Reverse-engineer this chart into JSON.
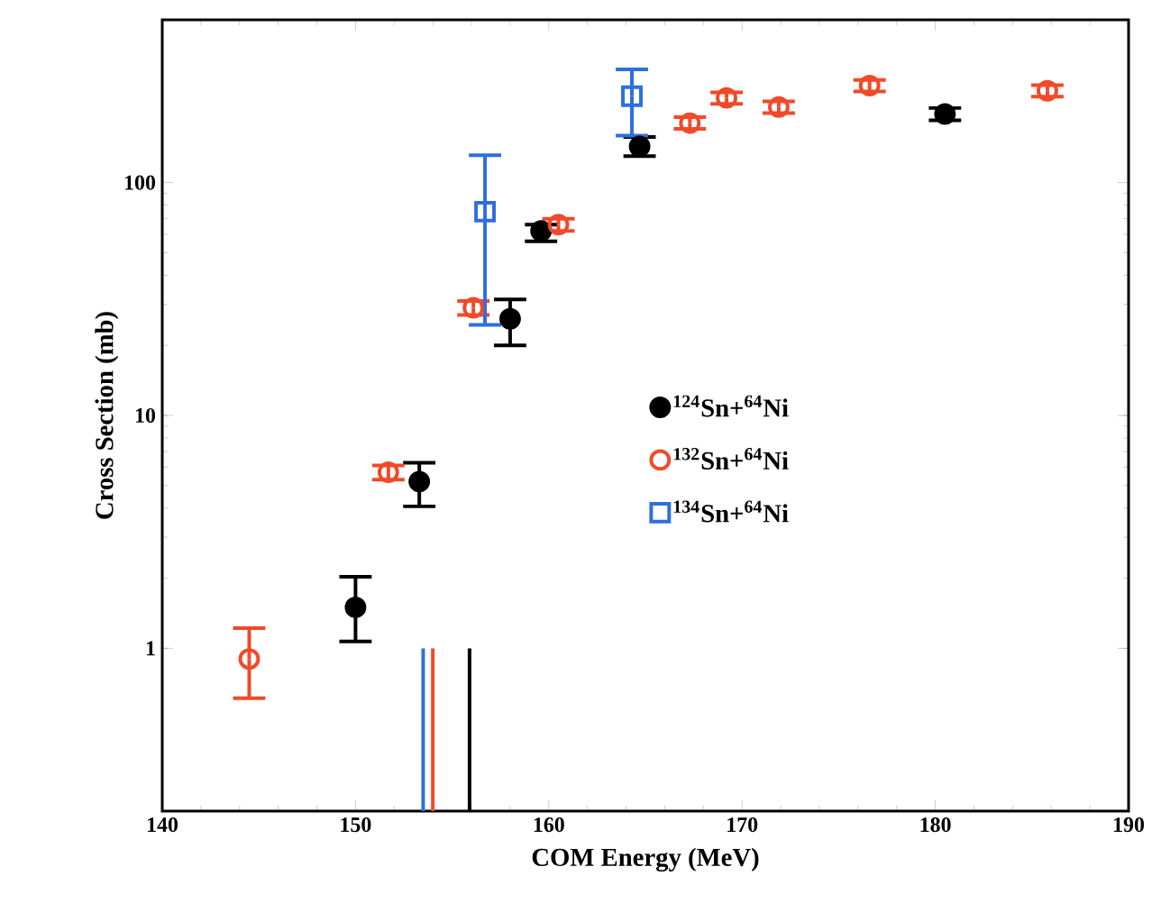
{
  "chart_data": {
    "type": "scatter",
    "xlabel": "COM Energy (MeV)",
    "ylabel": "Cross Section (mb)",
    "log": "y",
    "xlim": [
      140,
      190
    ],
    "ylim": [
      0.2,
      500
    ],
    "xticks": [
      140,
      150,
      160,
      170,
      180,
      190
    ],
    "yticks": [
      1,
      10,
      100
    ],
    "legend": "right",
    "grid": false,
    "series": [
      {
        "name": "$^{124}$Sn+$^{64}$Ni",
        "color": "#000000",
        "marker": "circle",
        "x": [
          150,
          153.3,
          158.0,
          159.6,
          164.7,
          180.5
        ],
        "values": [
          1.5,
          5.2,
          26,
          62,
          143,
          197
        ],
        "errors": [
          [
            1.07,
            2.03
          ],
          [
            4.07,
            6.26
          ],
          [
            20,
            31.5
          ],
          [
            56,
            66
          ],
          [
            130,
            157
          ],
          [
            185,
            209
          ]
        ]
      },
      {
        "name": "$^{132}$Sn+$^{64}$Ni",
        "color": "#f04a2a",
        "marker": "circle",
        "x": [
          144.5,
          151.7,
          156.1,
          160.5,
          167.3,
          169.2,
          171.9,
          176.6,
          185.8
        ],
        "values": [
          0.9,
          5.7,
          29,
          66,
          180,
          231,
          211,
          261,
          248
        ],
        "errors": [
          [
            0.61,
            1.22
          ],
          [
            5.3,
            6.1
          ],
          [
            27,
            31
          ],
          [
            62,
            70
          ],
          [
            170,
            191
          ],
          [
            218,
            244
          ],
          [
            199,
            223
          ],
          [
            246,
            276
          ],
          [
            234,
            262
          ]
        ]
      },
      {
        "name": "$^{134}$Sn+$^{64}$Ni",
        "color": "#2f6ee0",
        "marker": "square",
        "x": [
          156.7,
          164.3
        ],
        "values": [
          75,
          235
        ],
        "errors": [
          [
            24.5,
            131
          ],
          [
            159,
            306
          ]
        ]
      },
      {
        "type": "line",
        "color": "#2f6ee0",
        "x": [
          153.5,
          153.5
        ],
        "values": [
          0.2,
          1
        ]
      },
      {
        "type": "line",
        "color": "#f04a2a",
        "x": [
          154.0,
          154.0
        ],
        "values": [
          0.2,
          1
        ]
      },
      {
        "type": "line",
        "color": "#000000",
        "x": [
          155.9,
          155.9
        ],
        "values": [
          0.2,
          1
        ]
      }
    ]
  }
}
